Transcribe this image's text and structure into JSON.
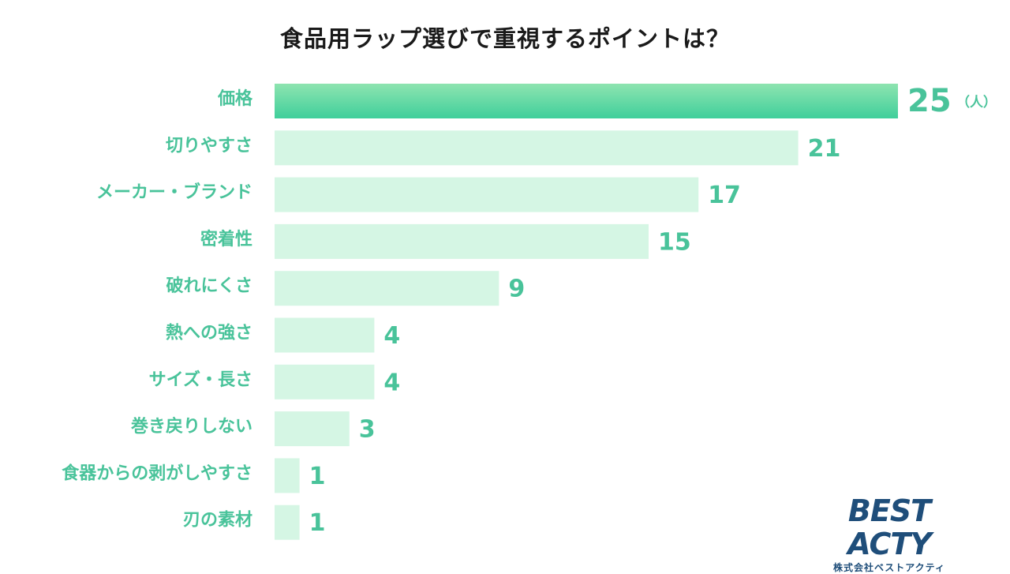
{
  "chart_data": {
    "type": "bar",
    "orientation": "horizontal",
    "title": "食品用ラップ選びで重視するポイントは？",
    "unit": "（人）",
    "categories": [
      "価格",
      "切りやすさ",
      "メーカー・ブランド",
      "密着性",
      "破れにくさ",
      "熱への強さ",
      "サイズ・長さ",
      "巻き戻りしない",
      "食器からの剥がしやすさ",
      "刃の素材"
    ],
    "values": [
      25,
      21,
      17,
      15,
      9,
      4,
      4,
      3,
      1,
      1
    ],
    "xlim": [
      0,
      25
    ],
    "grid": false,
    "highlight_index": 0,
    "colors": {
      "bar": "#d5f6e4",
      "highlight_top": "#8ee4b0",
      "highlight_bottom": "#3fcf9b",
      "label": "#49c39a"
    }
  },
  "logo": {
    "main": "BEST ACTY",
    "sub": "株式会社ベストアクティ"
  }
}
